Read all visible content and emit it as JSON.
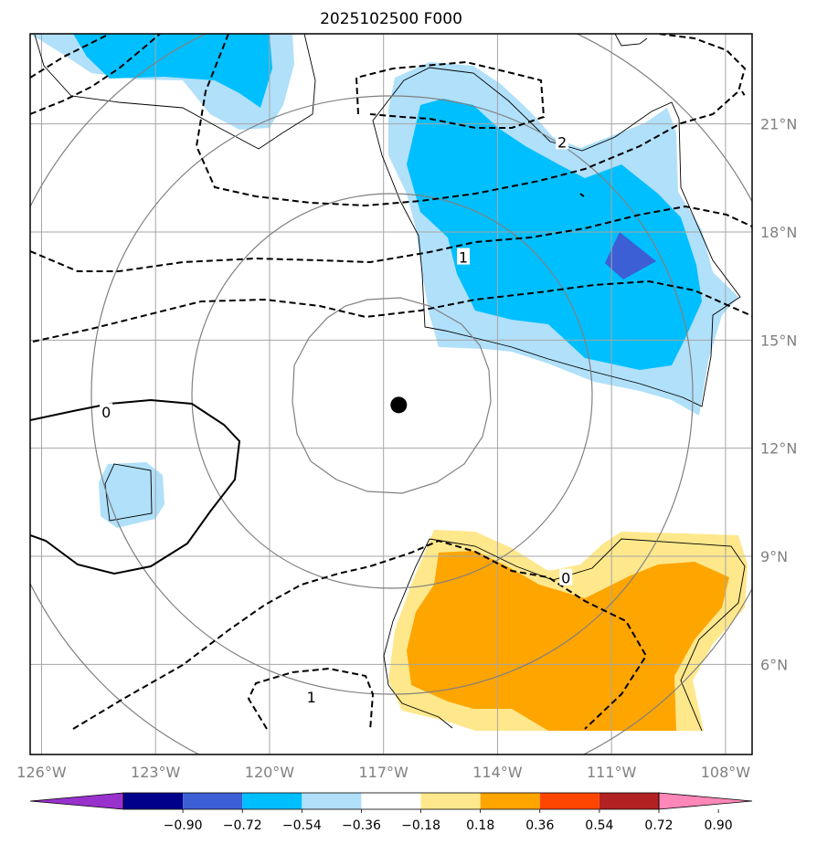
{
  "chart_data": {
    "type": "map-contour",
    "title": "2025102500 F000",
    "lon_range": [
      -126.3,
      -107.3
    ],
    "lat_range": [
      3.5,
      23.5
    ],
    "lon_ticks": [
      {
        "value": -126,
        "label": "126°W"
      },
      {
        "value": -123,
        "label": "123°W"
      },
      {
        "value": -120,
        "label": "120°W"
      },
      {
        "value": -117,
        "label": "117°W"
      },
      {
        "value": -114,
        "label": "114°W"
      },
      {
        "value": -111,
        "label": "111°W"
      },
      {
        "value": -108,
        "label": "108°W"
      }
    ],
    "lat_ticks": [
      {
        "value": 21,
        "label": "21°N"
      },
      {
        "value": 18,
        "label": "18°N"
      },
      {
        "value": 15,
        "label": "15°N"
      },
      {
        "value": 12,
        "label": "12°N"
      },
      {
        "value": 9,
        "label": "9°N"
      },
      {
        "value": 6,
        "label": "6°N"
      }
    ],
    "grid": true,
    "center_marker": {
      "lon": -116.6,
      "lat": 13.2
    },
    "range_rings_deg": [
      3,
      6,
      9,
      12
    ],
    "colorbar": {
      "extend": "both",
      "colors": [
        "#9932cc",
        "#00008b",
        "#3d5fd6",
        "#00bfff",
        "#b0e0fa",
        "#ffffff",
        "#ffe88c",
        "#ffa500",
        "#ff4500",
        "#b22222",
        "#ff88b8"
      ],
      "tick_labels": [
        "−0.90",
        "−0.72",
        "−0.54",
        "−0.36",
        "−0.18",
        "0.18",
        "0.36",
        "0.54",
        "0.72",
        "0.90"
      ]
    },
    "contour_labels": [
      {
        "text": "2",
        "lon": -112.3,
        "lat": 20.5
      },
      {
        "text": "1",
        "lon": -114.9,
        "lat": 17.3
      },
      {
        "text": "0",
        "lon": -124.3,
        "lat": 13.0
      },
      {
        "text": "0",
        "lon": -112.2,
        "lat": 8.4
      },
      {
        "text": "1",
        "lon": -118.9,
        "lat": 5.1
      }
    ]
  }
}
